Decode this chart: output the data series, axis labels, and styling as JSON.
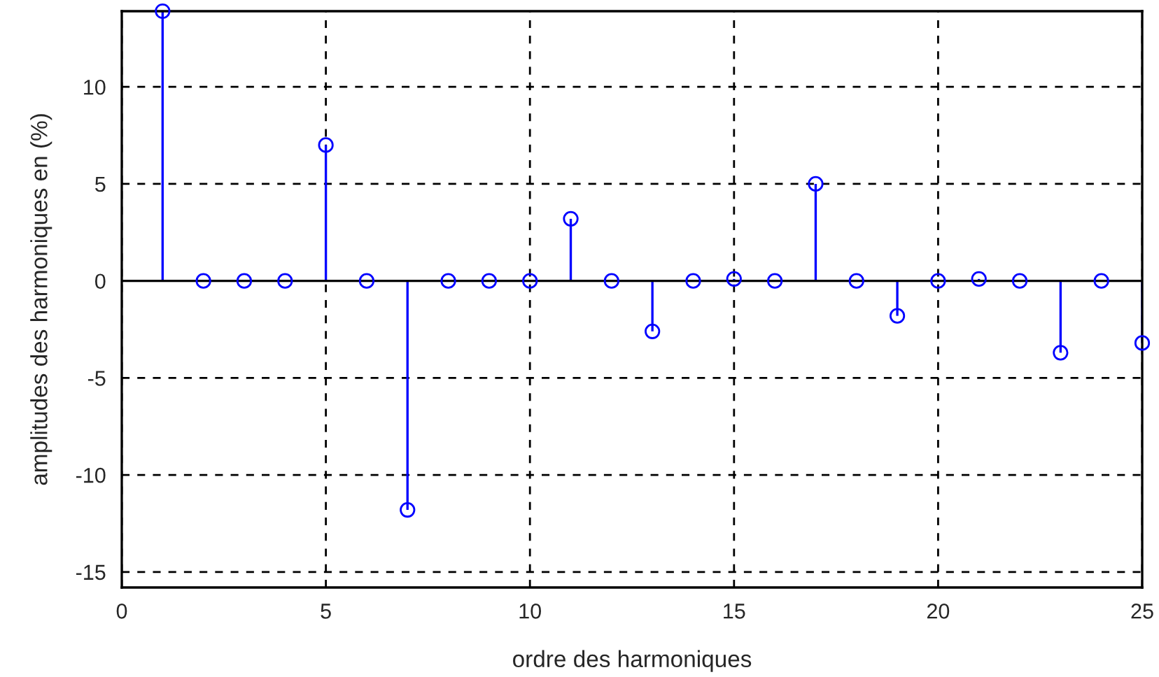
{
  "chart_data": {
    "type": "lollipop",
    "xlabel": "ordre des harmoniques",
    "ylabel": "amplitudes des harmoniques en (%)",
    "x": [
      1,
      2,
      3,
      4,
      5,
      6,
      7,
      8,
      9,
      10,
      11,
      12,
      13,
      14,
      15,
      16,
      17,
      18,
      19,
      20,
      21,
      22,
      23,
      24,
      25
    ],
    "series": [
      {
        "color": "#0000ff",
        "values": [
          13.9,
          0,
          0,
          0,
          7,
          0,
          -11.8,
          0,
          0,
          0,
          3.2,
          0,
          -2.6,
          0,
          0.1,
          0,
          5,
          0,
          -1.8,
          0,
          0.1,
          0,
          -3.7,
          0,
          -3.2
        ]
      }
    ],
    "xlim": [
      0,
      25
    ],
    "ylim": [
      -15.8,
      13.9
    ],
    "xticks": [
      0,
      5,
      10,
      15,
      20,
      25
    ],
    "yticks": [
      -15,
      -10,
      -5,
      0,
      5,
      10
    ],
    "grid": true,
    "marker": "circle"
  }
}
